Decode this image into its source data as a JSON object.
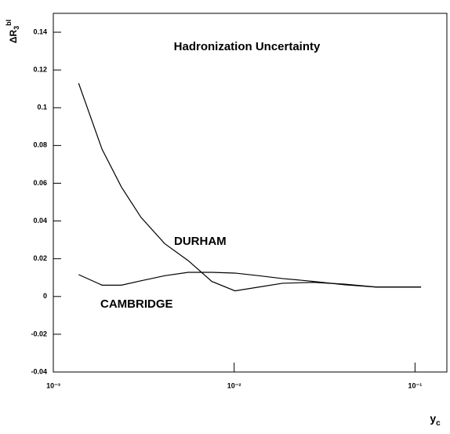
{
  "chart_data": {
    "type": "line",
    "title": "Hadronization Uncertainty",
    "y_label": {
      "main": "ΔR",
      "sub": "3",
      "sup": "bl"
    },
    "x_label": {
      "main": "y",
      "sub": "c"
    },
    "log_x": true,
    "xlim": [
      0.001,
      0.15
    ],
    "xticks": [
      {
        "value": 0.001,
        "label": "10⁻³"
      },
      {
        "value": 0.01,
        "label": "10⁻²"
      },
      {
        "value": 0.1,
        "label": "10⁻¹"
      }
    ],
    "ylim": [
      -0.04,
      0.15
    ],
    "yticks": [
      -0.04,
      -0.02,
      0,
      0.02,
      0.04,
      0.06,
      0.08,
      0.1,
      0.12,
      0.14
    ],
    "x": [
      0.00138,
      0.00186,
      0.00238,
      0.00305,
      0.00413,
      0.00557,
      0.00752,
      0.0101,
      0.0137,
      0.0185,
      0.0275,
      0.041,
      0.061,
      0.108
    ],
    "series": [
      {
        "name": "DURHAM",
        "color": "#000000",
        "values": [
          0.113,
          0.078,
          0.058,
          0.042,
          0.028,
          0.019,
          0.008,
          0.003,
          0.005,
          0.007,
          0.0075,
          0.0065,
          0.005,
          0.005
        ]
      },
      {
        "name": "CAMBRIDGE",
        "color": "#000000",
        "values": [
          0.0116,
          0.006,
          0.006,
          0.0083,
          0.011,
          0.0128,
          0.0128,
          0.0124,
          0.011,
          0.0095,
          0.008,
          0.0062,
          0.005,
          0.005
        ]
      }
    ]
  }
}
